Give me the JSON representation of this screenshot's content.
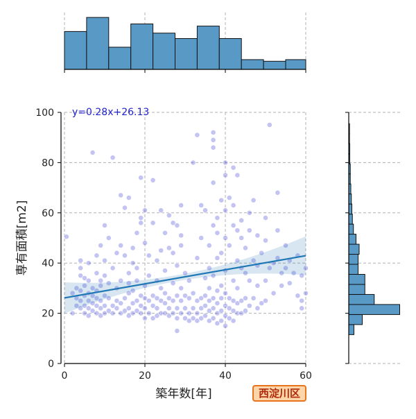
{
  "chart_data": {
    "type": "scatter",
    "subtype": "jointplot",
    "xlabel": "築年数[年]",
    "ylabel": "専有面積[m2]",
    "xlim": [
      0,
      60
    ],
    "ylim": [
      0,
      100
    ],
    "x_ticks": [
      0,
      20,
      40,
      60
    ],
    "y_ticks": [
      0,
      20,
      40,
      60,
      80,
      100
    ],
    "grid": true,
    "annotation": "y=0.28x+26.13",
    "regression": {
      "slope": 0.28,
      "intercept": 26.13
    },
    "badge": "西淀川区",
    "points": [
      [
        0.5,
        50.5
      ],
      [
        2,
        28
      ],
      [
        2,
        20
      ],
      [
        3,
        23
      ],
      [
        3,
        26
      ],
      [
        3,
        30
      ],
      [
        4,
        22
      ],
      [
        4,
        25
      ],
      [
        4,
        29
      ],
      [
        4,
        35
      ],
      [
        4,
        38
      ],
      [
        4,
        41
      ],
      [
        5,
        20
      ],
      [
        5,
        23
      ],
      [
        5,
        27
      ],
      [
        5,
        31
      ],
      [
        5,
        34
      ],
      [
        6,
        19
      ],
      [
        6,
        22
      ],
      [
        6,
        25
      ],
      [
        6,
        28
      ],
      [
        6,
        33
      ],
      [
        6,
        40
      ],
      [
        7,
        21
      ],
      [
        7,
        24
      ],
      [
        7,
        27
      ],
      [
        7,
        30
      ],
      [
        7,
        84
      ],
      [
        8,
        20
      ],
      [
        8,
        23
      ],
      [
        8,
        26
      ],
      [
        8,
        29
      ],
      [
        8,
        36
      ],
      [
        8,
        43
      ],
      [
        9,
        19
      ],
      [
        9,
        22
      ],
      [
        9,
        25
      ],
      [
        9,
        31
      ],
      [
        9,
        33
      ],
      [
        9,
        47
      ],
      [
        10,
        20
      ],
      [
        10,
        23
      ],
      [
        10,
        27
      ],
      [
        10,
        35
      ],
      [
        10,
        41
      ],
      [
        10,
        55
      ],
      [
        11,
        21
      ],
      [
        11,
        26
      ],
      [
        11,
        32
      ],
      [
        11,
        50
      ],
      [
        12,
        20
      ],
      [
        12,
        23
      ],
      [
        12,
        38
      ],
      [
        12,
        82
      ],
      [
        13,
        22
      ],
      [
        13,
        25
      ],
      [
        13,
        30
      ],
      [
        13,
        44
      ],
      [
        14,
        20
      ],
      [
        14,
        24
      ],
      [
        14,
        33
      ],
      [
        14,
        47
      ],
      [
        14,
        67
      ],
      [
        15,
        21
      ],
      [
        15,
        26
      ],
      [
        15,
        43
      ],
      [
        15,
        62
      ],
      [
        16,
        19
      ],
      [
        16,
        22
      ],
      [
        16,
        28
      ],
      [
        16,
        32
      ],
      [
        16,
        36
      ],
      [
        16,
        66
      ],
      [
        17,
        20
      ],
      [
        17,
        24
      ],
      [
        17,
        29
      ],
      [
        17,
        40
      ],
      [
        17,
        46
      ],
      [
        18,
        21
      ],
      [
        18,
        25
      ],
      [
        18,
        33
      ],
      [
        18,
        52
      ],
      [
        18,
        38
      ],
      [
        19,
        20
      ],
      [
        19,
        23
      ],
      [
        19,
        27
      ],
      [
        19,
        56
      ],
      [
        19,
        74
      ],
      [
        19,
        58
      ],
      [
        20,
        18
      ],
      [
        20,
        22
      ],
      [
        20,
        26
      ],
      [
        20,
        31
      ],
      [
        20,
        48
      ],
      [
        20,
        61
      ],
      [
        21,
        20
      ],
      [
        21,
        25
      ],
      [
        21,
        35
      ],
      [
        21,
        43
      ],
      [
        22,
        18
      ],
      [
        22,
        23
      ],
      [
        22,
        27
      ],
      [
        22,
        56
      ],
      [
        22,
        73
      ],
      [
        23,
        19
      ],
      [
        23,
        22
      ],
      [
        23,
        26
      ],
      [
        23,
        33
      ],
      [
        23,
        41
      ],
      [
        24,
        20
      ],
      [
        24,
        25
      ],
      [
        24,
        30
      ],
      [
        24,
        45
      ],
      [
        24,
        61
      ],
      [
        25,
        20
      ],
      [
        25,
        24
      ],
      [
        25,
        28
      ],
      [
        25,
        37
      ],
      [
        25,
        52
      ],
      [
        26,
        19
      ],
      [
        26,
        22
      ],
      [
        26,
        26
      ],
      [
        26,
        46
      ],
      [
        26,
        59
      ],
      [
        27,
        20
      ],
      [
        27,
        25
      ],
      [
        27,
        32
      ],
      [
        27,
        44
      ],
      [
        27,
        56
      ],
      [
        28,
        13
      ],
      [
        28,
        18
      ],
      [
        28,
        22
      ],
      [
        28,
        27
      ],
      [
        28,
        55
      ],
      [
        28,
        39
      ],
      [
        29,
        20
      ],
      [
        29,
        25
      ],
      [
        29,
        30
      ],
      [
        29,
        47
      ],
      [
        29,
        51
      ],
      [
        29,
        63
      ],
      [
        30,
        18
      ],
      [
        30,
        22
      ],
      [
        30,
        27
      ],
      [
        30,
        36
      ],
      [
        31,
        17
      ],
      [
        31,
        20
      ],
      [
        31,
        26
      ],
      [
        31,
        33
      ],
      [
        32,
        18
      ],
      [
        32,
        22
      ],
      [
        32,
        28
      ],
      [
        32,
        80
      ],
      [
        33,
        17
      ],
      [
        33,
        20
      ],
      [
        33,
        25
      ],
      [
        33,
        42
      ],
      [
        33,
        91
      ],
      [
        34,
        18
      ],
      [
        34,
        22
      ],
      [
        34,
        26
      ],
      [
        34,
        50
      ],
      [
        34,
        63
      ],
      [
        35,
        19
      ],
      [
        35,
        23
      ],
      [
        35,
        27
      ],
      [
        35,
        34
      ],
      [
        35,
        61
      ],
      [
        36,
        17
      ],
      [
        36,
        21
      ],
      [
        36,
        25
      ],
      [
        36,
        30
      ],
      [
        36,
        38
      ],
      [
        36,
        47
      ],
      [
        37,
        18
      ],
      [
        37,
        22
      ],
      [
        37,
        26
      ],
      [
        37,
        35
      ],
      [
        37,
        55
      ],
      [
        37,
        72
      ],
      [
        37,
        86
      ],
      [
        37,
        92
      ],
      [
        37,
        89
      ],
      [
        38,
        16
      ],
      [
        38,
        20
      ],
      [
        38,
        24
      ],
      [
        38,
        29
      ],
      [
        38,
        42
      ],
      [
        38,
        52
      ],
      [
        38,
        58
      ],
      [
        39,
        17
      ],
      [
        39,
        21
      ],
      [
        39,
        26
      ],
      [
        39,
        31
      ],
      [
        39,
        44
      ],
      [
        39,
        65
      ],
      [
        40,
        15
      ],
      [
        40,
        19
      ],
      [
        40,
        23
      ],
      [
        40,
        28
      ],
      [
        40,
        37
      ],
      [
        40,
        50
      ],
      [
        40,
        61
      ],
      [
        40,
        75
      ],
      [
        40,
        80
      ],
      [
        41,
        18
      ],
      [
        41,
        22
      ],
      [
        41,
        26
      ],
      [
        41,
        47
      ],
      [
        41,
        66
      ],
      [
        42,
        17
      ],
      [
        42,
        21
      ],
      [
        42,
        25
      ],
      [
        42,
        33
      ],
      [
        42,
        55
      ],
      [
        42,
        63
      ],
      [
        42,
        78
      ],
      [
        43,
        20
      ],
      [
        43,
        24
      ],
      [
        43,
        30
      ],
      [
        43,
        41
      ],
      [
        43,
        53
      ],
      [
        43,
        75
      ],
      [
        44,
        20
      ],
      [
        44,
        25
      ],
      [
        44,
        38
      ],
      [
        44,
        50
      ],
      [
        44,
        57
      ],
      [
        45,
        21
      ],
      [
        45,
        26
      ],
      [
        45,
        36
      ],
      [
        45,
        46
      ],
      [
        46,
        23
      ],
      [
        46,
        33
      ],
      [
        46,
        53
      ],
      [
        46,
        60
      ],
      [
        47,
        26
      ],
      [
        47,
        41
      ],
      [
        47,
        65
      ],
      [
        48,
        22
      ],
      [
        48,
        31
      ],
      [
        48,
        39
      ],
      [
        48,
        51
      ],
      [
        49,
        24
      ],
      [
        49,
        44
      ],
      [
        50,
        25
      ],
      [
        50,
        33
      ],
      [
        50,
        49
      ],
      [
        50,
        58
      ],
      [
        51,
        95
      ],
      [
        51,
        38
      ],
      [
        52,
        28
      ],
      [
        52,
        40
      ],
      [
        53,
        42
      ],
      [
        53,
        53
      ],
      [
        53,
        68
      ],
      [
        54,
        31
      ],
      [
        54,
        36
      ],
      [
        55,
        38
      ],
      [
        55,
        47
      ],
      [
        56,
        32
      ],
      [
        56,
        41
      ],
      [
        57,
        36
      ],
      [
        58,
        27
      ],
      [
        58,
        43
      ],
      [
        59,
        25
      ],
      [
        59,
        35
      ],
      [
        59,
        22
      ],
      [
        60,
        28
      ],
      [
        60,
        38
      ]
    ],
    "top_hist": {
      "bin_edges": [
        0,
        5.5,
        11,
        16.5,
        22,
        27.5,
        33,
        38.5,
        44,
        49.5,
        55,
        60
      ],
      "heights": [
        0.7,
        0.96,
        0.41,
        0.84,
        0.67,
        0.57,
        0.8,
        0.57,
        0.18,
        0.15,
        0.18
      ]
    },
    "right_hist": {
      "bin_edges": [
        11.5,
        15.5,
        19.5,
        23.5,
        27.5,
        31.5,
        35.5,
        39.5,
        43.5,
        47.5,
        51.5,
        55.5,
        59.5,
        63.5,
        67.5,
        71.5,
        75.5,
        79.5,
        83.5,
        87.5,
        91.5,
        95.5
      ],
      "heights": [
        0.1,
        0.26,
        0.98,
        0.49,
        0.31,
        0.31,
        0.18,
        0.18,
        0.2,
        0.14,
        0.09,
        0.07,
        0.06,
        0.05,
        0.04,
        0.03,
        0.03,
        0.02,
        0.02,
        0.015,
        0.015
      ]
    }
  }
}
